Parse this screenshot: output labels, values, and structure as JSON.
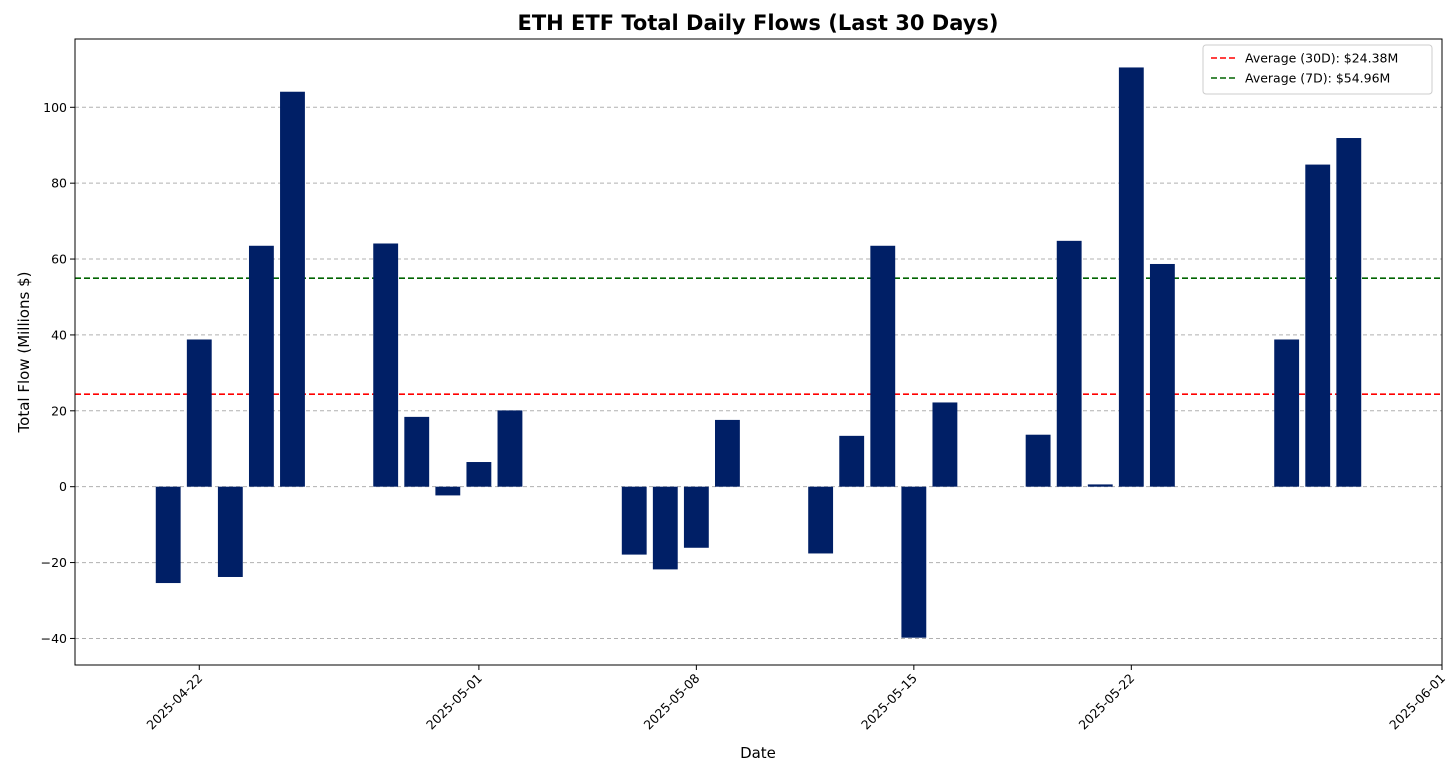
{
  "chart_data": {
    "type": "bar",
    "title": "ETH ETF Total Daily Flows (Last 30 Days)",
    "xlabel": "Date",
    "ylabel": "Total Flow (Millions $)",
    "ylim": [
      -47,
      118
    ],
    "xlim": [
      "2025-04-18",
      "2025-06-01"
    ],
    "yticks": [
      -40,
      -20,
      0,
      20,
      40,
      60,
      80,
      100
    ],
    "ytick_labels": [
      "−40",
      "−20",
      "0",
      "20",
      "40",
      "60",
      "80",
      "100"
    ],
    "xticks": [
      "2025-04-22",
      "2025-05-01",
      "2025-05-08",
      "2025-05-15",
      "2025-05-22",
      "2025-06-01"
    ],
    "grid": "horizontal dashed",
    "legend_position": "top-right",
    "bar_color": "#001f66",
    "series": [
      {
        "values": [
          {
            "date": "2025-04-21",
            "value": -25.4
          },
          {
            "date": "2025-04-22",
            "value": 38.8
          },
          {
            "date": "2025-04-23",
            "value": -23.8
          },
          {
            "date": "2025-04-24",
            "value": 63.5
          },
          {
            "date": "2025-04-25",
            "value": 104.1
          },
          {
            "date": "2025-04-28",
            "value": 64.1
          },
          {
            "date": "2025-04-29",
            "value": 18.4
          },
          {
            "date": "2025-04-30",
            "value": -2.3
          },
          {
            "date": "2025-05-01",
            "value": 6.5
          },
          {
            "date": "2025-05-02",
            "value": 20.1
          },
          {
            "date": "2025-05-06",
            "value": -17.9
          },
          {
            "date": "2025-05-07",
            "value": -21.8
          },
          {
            "date": "2025-05-08",
            "value": -16.1
          },
          {
            "date": "2025-05-09",
            "value": 17.6
          },
          {
            "date": "2025-05-12",
            "value": -17.6
          },
          {
            "date": "2025-05-13",
            "value": 13.4
          },
          {
            "date": "2025-05-14",
            "value": 63.5
          },
          {
            "date": "2025-05-15",
            "value": -39.8
          },
          {
            "date": "2025-05-16",
            "value": 22.2
          },
          {
            "date": "2025-05-19",
            "value": 13.7
          },
          {
            "date": "2025-05-20",
            "value": 64.8
          },
          {
            "date": "2025-05-21",
            "value": 0.6
          },
          {
            "date": "2025-05-22",
            "value": 110.5
          },
          {
            "date": "2025-05-23",
            "value": 58.7
          },
          {
            "date": "2025-05-27",
            "value": 38.8
          },
          {
            "date": "2025-05-28",
            "value": 84.9
          },
          {
            "date": "2025-05-29",
            "value": 91.9
          }
        ]
      }
    ],
    "reference_lines": [
      {
        "label": "Average (30D): $24.38M",
        "value": 24.38,
        "color": "#ff0000",
        "style": "dashed"
      },
      {
        "label": "Average (7D): $54.96M",
        "value": 54.96,
        "color": "#006400",
        "style": "dashed"
      }
    ]
  }
}
